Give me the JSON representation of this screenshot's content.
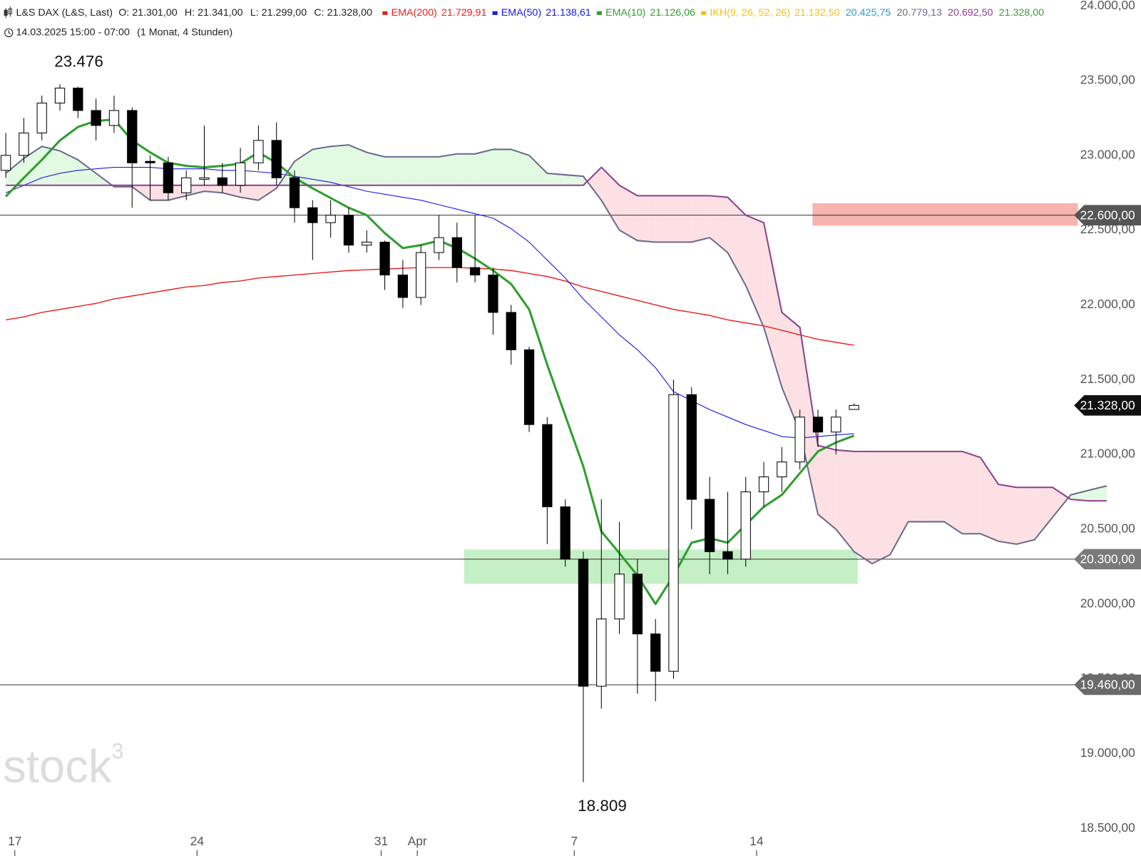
{
  "header": {
    "symbol": "L&S DAX (L&S, Last)",
    "ohlc": [
      "O: 21.301,00",
      "H: 21.341,00",
      "L: 21.299,00",
      "C: 21.328,00"
    ],
    "date": "14.03.2025 15:00 - 07:00",
    "period": "(1 Monat, 4 Stunden)"
  },
  "watermark": {
    "text": "stock",
    "sup": "3"
  },
  "chart_data": {
    "type": "candlestick",
    "xlim": [
      -0.32,
      62.9
    ],
    "ylim": [
      18500,
      24000
    ],
    "xticks": [
      {
        "value": 0.5,
        "label": "17"
      },
      {
        "value": 10.6,
        "label": "24"
      },
      {
        "value": 20.8,
        "label": "31"
      },
      {
        "value": 22.8,
        "label": "Apr"
      },
      {
        "value": 31.5,
        "label": "7"
      },
      {
        "value": 41.6,
        "label": "14"
      }
    ],
    "yticks": [
      {
        "value": 18500,
        "label": "18.500,00"
      },
      {
        "value": 19000,
        "label": "19.000,00"
      },
      {
        "value": 19500,
        "label": "19.500,00"
      },
      {
        "value": 20000,
        "label": "20.000,00"
      },
      {
        "value": 20500,
        "label": "20.500,00"
      },
      {
        "value": 21000,
        "label": "21.000,00"
      },
      {
        "value": 21500,
        "label": "21.500,00"
      },
      {
        "value": 22000,
        "label": "22.000,00"
      },
      {
        "value": 22500,
        "label": "22.500,00"
      },
      {
        "value": 23000,
        "label": "23.000,00"
      },
      {
        "value": 23500,
        "label": "23.500,00"
      },
      {
        "value": 24000,
        "label": "24.000,00"
      }
    ],
    "grid": false,
    "up_color": "#ffffff",
    "down_color": "#000000",
    "open": [
      22900,
      23000,
      23150,
      23350,
      23450,
      23300,
      23200,
      23300,
      22960,
      22950,
      22750,
      22840,
      22850,
      22800,
      22950,
      23100,
      22850,
      22650,
      22550,
      22600,
      22400,
      22420,
      22200,
      22050,
      22350,
      22450,
      22250,
      22200,
      21950,
      21700,
      21200,
      20650,
      20300,
      19450,
      19900,
      20200,
      19800,
      19550,
      21400,
      20700,
      20350,
      20300,
      20750,
      20850,
      20950,
      21250,
      21150,
      21301
    ],
    "high": [
      23150,
      23250,
      23400,
      23476,
      23460,
      23380,
      23400,
      23320,
      23000,
      22990,
      22900,
      23200,
      22950,
      23050,
      23200,
      23220,
      22900,
      22700,
      22700,
      22650,
      22500,
      22430,
      22300,
      22400,
      22600,
      22550,
      22600,
      22250,
      22000,
      21720,
      21250,
      20700,
      20350,
      20700,
      20550,
      20300,
      19900,
      21500,
      21450,
      20850,
      20750,
      20850,
      20950,
      21050,
      21300,
      21300,
      21300,
      21341
    ],
    "low": [
      22850,
      22950,
      23100,
      23300,
      23250,
      23100,
      23150,
      22650,
      22700,
      22700,
      22700,
      22800,
      22750,
      22750,
      22900,
      22800,
      22550,
      22300,
      22450,
      22350,
      22350,
      22100,
      21980,
      22000,
      22300,
      22150,
      22150,
      21800,
      21600,
      21150,
      20400,
      20250,
      18809,
      19300,
      19800,
      19400,
      19350,
      19500,
      20500,
      20200,
      20200,
      20250,
      20650,
      20750,
      20900,
      21050,
      21000,
      21299
    ],
    "close": [
      23000,
      23150,
      23350,
      23450,
      23300,
      23200,
      23300,
      22950,
      22950,
      22750,
      22850,
      22850,
      22800,
      22950,
      23100,
      22850,
      22650,
      22550,
      22600,
      22400,
      22420,
      22200,
      22050,
      22350,
      22450,
      22250,
      22200,
      21950,
      21700,
      21200,
      20650,
      20300,
      19450,
      19900,
      20200,
      19800,
      19550,
      21400,
      20700,
      20350,
      20300,
      20750,
      20850,
      20950,
      21250,
      21150,
      21250,
      21328
    ],
    "legend": [
      {
        "name": "EMA(200)",
        "label": "21.729,91",
        "color": "#e8201c",
        "width": 1.4,
        "values": [
          21900,
          21920,
          21950,
          21970,
          21990,
          22010,
          22040,
          22060,
          22080,
          22100,
          22120,
          22130,
          22150,
          22160,
          22180,
          22190,
          22200,
          22210,
          22220,
          22230,
          22235,
          22240,
          22245,
          22250,
          22250,
          22250,
          22245,
          22240,
          22230,
          22210,
          22190,
          22160,
          22120,
          22090,
          22060,
          22030,
          22000,
          21970,
          21950,
          21930,
          21900,
          21880,
          21860,
          21830,
          21800,
          21770,
          21750,
          21730
        ]
      },
      {
        "name": "EMA(50)",
        "label": "21.138,61",
        "color": "#1a1ae6",
        "width": 1.1,
        "values": [
          22750,
          22800,
          22850,
          22880,
          22900,
          22910,
          22920,
          22920,
          22920,
          22910,
          22910,
          22910,
          22900,
          22900,
          22890,
          22880,
          22860,
          22840,
          22820,
          22790,
          22760,
          22740,
          22720,
          22700,
          22670,
          22640,
          22610,
          22580,
          22510,
          22420,
          22300,
          22180,
          22040,
          21920,
          21800,
          21700,
          21580,
          21420,
          21360,
          21300,
          21250,
          21200,
          21160,
          21120,
          21110,
          21120,
          21130,
          21139
        ]
      },
      {
        "name": "EMA(10)",
        "label": "21.126,06",
        "color": "#2e9e2e",
        "width": 3,
        "values": [
          22725,
          22850,
          22970,
          23100,
          23190,
          23230,
          23240,
          23100,
          23020,
          22950,
          22930,
          22920,
          22930,
          22945,
          23020,
          22950,
          22850,
          22780,
          22715,
          22650,
          22600,
          22480,
          22380,
          22400,
          22430,
          22380,
          22310,
          22230,
          22140,
          21970,
          21600,
          21260,
          20920,
          20485,
          20340,
          20190,
          20000,
          20190,
          20410,
          20440,
          20410,
          20530,
          20650,
          20730,
          20875,
          21020,
          21080,
          21126
        ]
      },
      {
        "name": "IKH(9, 26, 52, 26)",
        "label": "21.132,50",
        "color": "#f2c20f"
      },
      {
        "label": "20.425,75",
        "color": "#2a9ad0"
      },
      {
        "label": "20.779,13",
        "color": "#6b6b8c",
        "width": 2,
        "values": [
          22880,
          22980,
          23060,
          23030,
          22970,
          22880,
          22790,
          22790,
          22700,
          22700,
          22730,
          22760,
          22750,
          22720,
          22700,
          22780,
          22960,
          23040,
          23060,
          23070,
          23020,
          22990,
          22990,
          22990,
          22990,
          23010,
          23010,
          23040,
          23040,
          23000,
          22880,
          22870,
          22860,
          22700,
          22500,
          22430,
          22420,
          22420,
          22420,
          22450,
          22350,
          22130,
          21850,
          21450,
          21150,
          20600,
          20500,
          20350,
          20270,
          20330,
          20550,
          20550,
          20550,
          20470,
          20470,
          20420,
          20400,
          20430,
          20580,
          20730,
          20760,
          20790
        ]
      },
      {
        "label": "20.692,50",
        "color": "#8e3f8e",
        "width": 2,
        "values": [
          22800,
          22800,
          22800,
          22800,
          22800,
          22800,
          22800,
          22800,
          22800,
          22800,
          22800,
          22800,
          22800,
          22800,
          22800,
          22800,
          22800,
          22800,
          22800,
          22800,
          22800,
          22800,
          22800,
          22800,
          22800,
          22800,
          22800,
          22800,
          22800,
          22800,
          22800,
          22800,
          22800,
          22920,
          22800,
          22730,
          22730,
          22730,
          22730,
          22730,
          22720,
          22600,
          22550,
          21950,
          21850,
          21060,
          21030,
          21020,
          21020,
          21020,
          21020,
          21020,
          21020,
          21020,
          20980,
          20800,
          20780,
          20780,
          20780,
          20700,
          20690,
          20690
        ]
      },
      {
        "label": "21.328,00",
        "color": "#3d9a3d"
      }
    ],
    "cloud_colors": {
      "up": "#e2f9e2",
      "down": "#fde0e3"
    },
    "zones": [
      {
        "range": [
          22530,
          22680
        ],
        "x": [
          44.7,
          59.4
        ],
        "color": "#f7b3ad"
      },
      {
        "range": [
          20135,
          20364
        ],
        "x": [
          25.4,
          47.2
        ],
        "color": "#c5efc5"
      }
    ],
    "levels": [
      {
        "value": 22600,
        "label": "22.600,00",
        "color": "#555555"
      },
      {
        "value": 20300,
        "label": "20.300,00",
        "color": "#7a7a7a"
      },
      {
        "value": 19460,
        "label": "19.460,00",
        "color": "#6a6a6a"
      }
    ],
    "last_price": {
      "value": 21328,
      "label": "21.328,00",
      "color": "#111111"
    },
    "annotations": [
      {
        "label": "23.476",
        "value": 23476,
        "x": 3,
        "position": "above"
      },
      {
        "label": "18.809",
        "value": 18809,
        "x": 32,
        "position": "below"
      }
    ]
  }
}
